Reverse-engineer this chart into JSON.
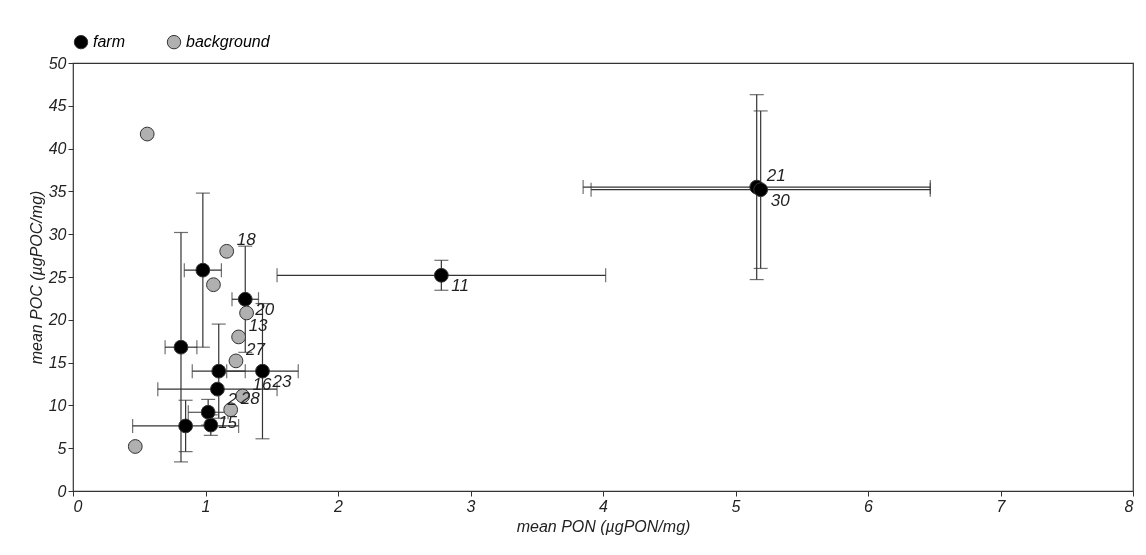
{
  "chart_data": {
    "type": "scatter",
    "xlabel": "mean PON (µgPON/mg)",
    "ylabel": "mean POC (µgPOC/mg)",
    "xlim": [
      0,
      8
    ],
    "xticks": [
      0,
      1,
      2,
      3,
      4,
      5,
      6,
      7,
      8
    ],
    "ylim": [
      0,
      50
    ],
    "yticks": [
      0,
      5,
      10,
      15,
      20,
      25,
      30,
      35,
      40,
      45,
      50
    ],
    "grid": false,
    "legend": "top",
    "marker": "circle",
    "series": [
      {
        "name": "farm",
        "color": "#000000",
        "x": [
          0.98,
          1.3,
          0.815,
          1.1,
          1.43,
          1.09,
          1.02,
          1.04,
          0.85,
          2.78,
          5.16,
          5.19
        ],
        "values": [
          25.8,
          22.4,
          16.8,
          14.0,
          14.0,
          11.9,
          9.2,
          7.7,
          7.6,
          25.2,
          35.5,
          35.2
        ],
        "errors": [
          9,
          6.2,
          13.4,
          5.5,
          7.9,
          null,
          1.5,
          1.2,
          3,
          1.75,
          10.8,
          9.2
        ],
        "xerrors": [
          0.14,
          0.1,
          0.12,
          0.2,
          0.27,
          0.45,
          0.15,
          null,
          0.4,
          1.24,
          1.31,
          1.28
        ]
      },
      {
        "name": "background",
        "color": "#b0b0b0",
        "x": [
          0.56,
          1.16,
          1.06,
          1.31,
          1.25,
          1.23,
          1.28,
          1.19,
          0.47
        ],
        "values": [
          41.7,
          28.0,
          24.1,
          20.8,
          18.0,
          15.2,
          11.1,
          9.5,
          5.2
        ]
      }
    ],
    "annotations": [
      {
        "text": "18",
        "x": 1.16,
        "y": 28.0
      },
      {
        "text": "20",
        "x": 1.3,
        "y": 22.4
      },
      {
        "text": "13",
        "x": 1.25,
        "y": 18.0
      },
      {
        "text": "23",
        "x": 1.43,
        "y": 14.0
      },
      {
        "text": "27",
        "x": 1.23,
        "y": 15.2
      },
      {
        "text": "2",
        "x": 1.09,
        "y": 11.9
      },
      {
        "text": "16",
        "x": 1.28,
        "y": 11.1
      },
      {
        "text": "15",
        "x": 1.02,
        "y": 9.2
      },
      {
        "text": "28",
        "x": 1.19,
        "y": 9.5
      },
      {
        "text": "11",
        "x": 2.78,
        "y": 25.2
      },
      {
        "text": "21",
        "x": 5.16,
        "y": 35.5
      },
      {
        "text": "30",
        "x": 5.19,
        "y": 35.2
      }
    ]
  }
}
